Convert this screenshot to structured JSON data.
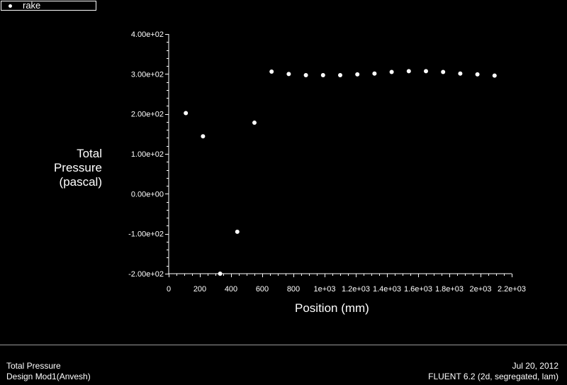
{
  "legend": {
    "label": "rake"
  },
  "chart_data": {
    "type": "scatter",
    "xlabel": "Position (mm)",
    "ylabel_lines": [
      "Total",
      "Pressure",
      "(pascal)"
    ],
    "xlim": [
      0,
      2200
    ],
    "ylim": [
      -200,
      400
    ],
    "x_ticks": [
      {
        "value": 0,
        "label": "0"
      },
      {
        "value": 200,
        "label": "200"
      },
      {
        "value": 400,
        "label": "400"
      },
      {
        "value": 600,
        "label": "600"
      },
      {
        "value": 800,
        "label": "800"
      },
      {
        "value": 1000,
        "label": "1e+03"
      },
      {
        "value": 1200,
        "label": "1.2e+03"
      },
      {
        "value": 1400,
        "label": "1.4e+03"
      },
      {
        "value": 1600,
        "label": "1.6e+03"
      },
      {
        "value": 1800,
        "label": "1.8e+03"
      },
      {
        "value": 2000,
        "label": "2e+03"
      },
      {
        "value": 2200,
        "label": "2.2e+03"
      }
    ],
    "y_ticks": [
      {
        "value": 400,
        "label": "4.00e+02"
      },
      {
        "value": 300,
        "label": "3.00e+02"
      },
      {
        "value": 200,
        "label": "2.00e+02"
      },
      {
        "value": 100,
        "label": "1.00e+02"
      },
      {
        "value": 0,
        "label": "0.00e+00"
      },
      {
        "value": -100,
        "label": "-1.00e+02"
      },
      {
        "value": -200,
        "label": "-2.00e+02"
      }
    ],
    "series": [
      {
        "name": "rake",
        "x": [
          110,
          220,
          330,
          440,
          550,
          660,
          770,
          880,
          990,
          1100,
          1210,
          1320,
          1430,
          1540,
          1650,
          1760,
          1870,
          1980,
          2090
        ],
        "y": [
          202,
          144,
          -200,
          -95,
          178,
          306,
          300,
          297,
          297,
          297,
          299,
          301,
          305,
          307,
          307,
          305,
          301,
          299,
          296
        ]
      }
    ],
    "grid": false
  },
  "footer": {
    "title": "Total Pressure",
    "subtitle": "Design Mod1(Anvesh)",
    "date": "Jul 20, 2012",
    "solver": "FLUENT 6.2 (2d, segregated, lam)"
  },
  "colors": {
    "background": "#000000",
    "foreground": "#ffffff",
    "panel_border": "#9a9a9a"
  }
}
